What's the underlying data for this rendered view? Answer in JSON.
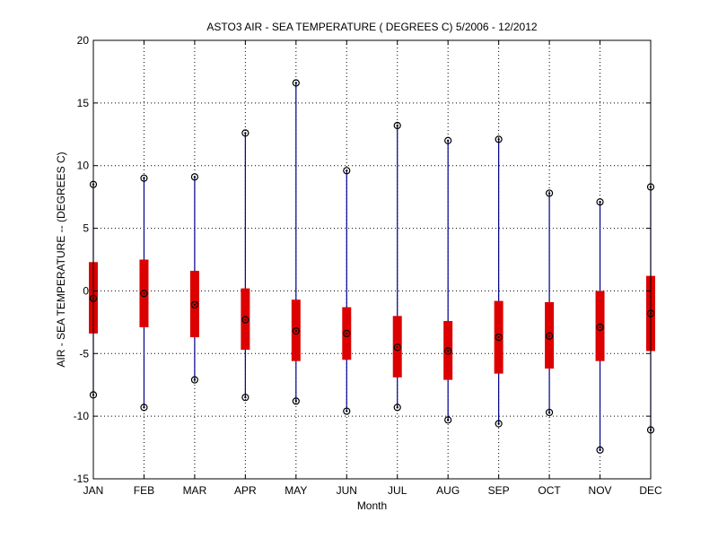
{
  "chart_data": {
    "type": "box",
    "title": "ASTO3  AIR - SEA TEMPERATURE ( DEGREES C) 5/2006 - 12/2012",
    "xlabel": "Month",
    "ylabel": "AIR - SEA TEMPERATURE -- (DEGREES C)",
    "ylim": [
      -15,
      20
    ],
    "yticks": [
      -15,
      -10,
      -5,
      0,
      5,
      10,
      15,
      20
    ],
    "grid": true,
    "categories": [
      "JAN",
      "FEB",
      "MAR",
      "APR",
      "MAY",
      "JUN",
      "JUL",
      "AUG",
      "SEP",
      "OCT",
      "NOV",
      "DEC"
    ],
    "series": [
      {
        "max": [
          8.5,
          9.0,
          9.1,
          12.6,
          16.6,
          9.6,
          13.2,
          12.0,
          12.1,
          7.8,
          7.1,
          8.3
        ],
        "q3": [
          2.3,
          2.5,
          1.6,
          0.2,
          -0.7,
          -1.3,
          -2.0,
          -2.4,
          -0.8,
          -0.9,
          0.0,
          1.2
        ],
        "median": [
          -0.6,
          -0.2,
          -1.1,
          -2.3,
          -3.2,
          -3.4,
          -4.5,
          -4.8,
          -3.7,
          -3.6,
          -2.9,
          -1.8
        ],
        "q1": [
          -3.4,
          -2.9,
          -3.7,
          -4.7,
          -5.6,
          -5.5,
          -6.9,
          -7.1,
          -6.6,
          -6.2,
          -5.6,
          -4.8
        ],
        "min": [
          -8.3,
          -9.3,
          -7.1,
          -8.5,
          -8.8,
          -9.6,
          -9.3,
          -10.3,
          -10.6,
          -9.7,
          -12.7,
          -11.1
        ]
      }
    ]
  },
  "colors": {
    "whisker": "#00008b",
    "box": "#dd0000",
    "marker": "#000000",
    "grid": "#000000",
    "axis": "#000000"
  }
}
